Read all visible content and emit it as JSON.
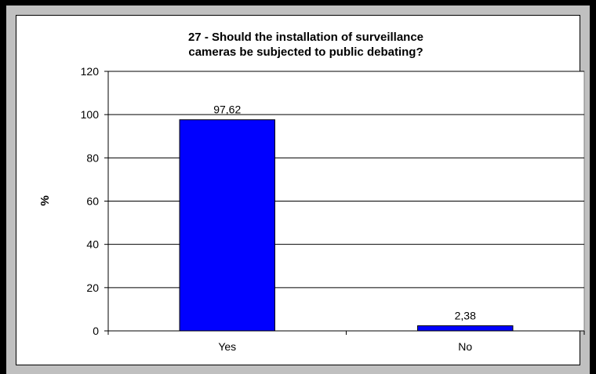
{
  "chart_data": {
    "type": "bar",
    "title": "27 - Should the installation of surveillance cameras be subjected to public debating?",
    "title_lines": [
      "27 - Should the installation of surveillance",
      "cameras be subjected to public debating?"
    ],
    "ylabel": "%",
    "xlabel": "",
    "categories": [
      "Yes",
      "No"
    ],
    "values": [
      97.62,
      2.38
    ],
    "data_labels": [
      "97,62",
      "2,38"
    ],
    "ylim": [
      0,
      120
    ],
    "yticks": [
      0,
      20,
      40,
      60,
      80,
      100,
      120
    ],
    "grid": true,
    "legend": "none",
    "bar_color": "#0000ff",
    "plot_background": "#ffffff",
    "page_background": "#c0c0c0"
  }
}
